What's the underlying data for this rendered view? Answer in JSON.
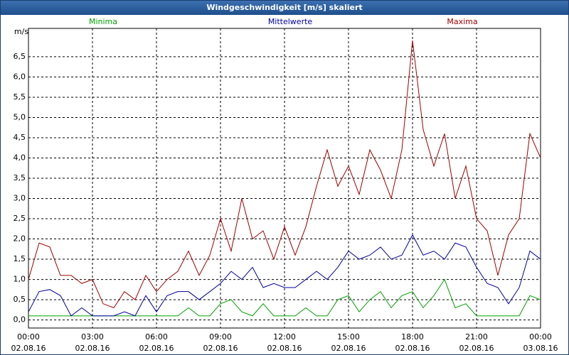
{
  "title": "Windgeschwindigkeit [m/s] skaliert",
  "chart_data": {
    "type": "line",
    "y_label": "m/s",
    "x": [
      0,
      0.5,
      1,
      1.5,
      2,
      2.5,
      3,
      3.5,
      4,
      4.5,
      5,
      5.5,
      6,
      6.5,
      7,
      7.5,
      8,
      8.5,
      9,
      9.5,
      10,
      10.5,
      11,
      11.5,
      12,
      12.5,
      13,
      13.5,
      14,
      14.5,
      15,
      15.5,
      16,
      16.5,
      17,
      17.5,
      18,
      18.5,
      19,
      19.5,
      20,
      20.5,
      21,
      21.5,
      22,
      22.5,
      23,
      23.5,
      24
    ],
    "series": [
      {
        "name": "Minima",
        "color": "#00a000",
        "values": [
          0.1,
          0.1,
          0.1,
          0.1,
          0.1,
          0.1,
          0.1,
          0.1,
          0.1,
          0.1,
          0.1,
          0.1,
          0.1,
          0.1,
          0.1,
          0.3,
          0.1,
          0.1,
          0.4,
          0.5,
          0.2,
          0.1,
          0.4,
          0.1,
          0.1,
          0.1,
          0.3,
          0.1,
          0.1,
          0.5,
          0.6,
          0.2,
          0.5,
          0.7,
          0.3,
          0.6,
          0.7,
          0.3,
          0.6,
          1.0,
          0.3,
          0.4,
          0.1,
          0.1,
          0.1,
          0.1,
          0.1,
          0.6,
          0.5
        ]
      },
      {
        "name": "Mittelwerte",
        "color": "#0000a0",
        "values": [
          0.2,
          0.7,
          0.75,
          0.6,
          0.1,
          0.3,
          0.1,
          0.1,
          0.1,
          0.2,
          0.1,
          0.6,
          0.2,
          0.6,
          0.7,
          0.7,
          0.5,
          0.7,
          0.9,
          1.2,
          1.0,
          1.3,
          0.8,
          0.9,
          0.8,
          0.8,
          1.0,
          1.2,
          1.0,
          1.3,
          1.7,
          1.5,
          1.6,
          1.8,
          1.5,
          1.6,
          2.1,
          1.6,
          1.7,
          1.5,
          1.9,
          1.8,
          1.3,
          0.9,
          0.8,
          0.4,
          0.8,
          1.7,
          1.5
        ]
      },
      {
        "name": "Maxima",
        "color": "#a00000",
        "values": [
          1.0,
          1.9,
          1.8,
          1.1,
          1.1,
          0.9,
          1.0,
          0.4,
          0.3,
          0.7,
          0.5,
          1.1,
          0.7,
          1.0,
          1.2,
          1.7,
          1.1,
          1.6,
          2.5,
          1.7,
          3.0,
          2.0,
          2.2,
          1.5,
          2.3,
          1.6,
          2.3,
          3.3,
          4.2,
          3.3,
          3.8,
          3.1,
          4.2,
          3.7,
          3.0,
          4.2,
          6.9,
          4.7,
          3.8,
          4.6,
          3.0,
          3.8,
          2.5,
          2.2,
          1.1,
          2.1,
          2.5,
          4.6,
          4.0
        ]
      }
    ],
    "xlim": [
      0,
      24
    ],
    "xticks": [
      {
        "value": 0,
        "label": "00:00"
      },
      {
        "value": 3,
        "label": "03:00"
      },
      {
        "value": 6,
        "label": "06:00"
      },
      {
        "value": 9,
        "label": "09:00"
      },
      {
        "value": 12,
        "label": "12:00"
      },
      {
        "value": 15,
        "label": "15:00"
      },
      {
        "value": 18,
        "label": "18:00"
      },
      {
        "value": 21,
        "label": "21:00"
      },
      {
        "value": 24,
        "label": "00:00"
      }
    ],
    "xtick_dates": [
      "02.08.16",
      "02.08.16",
      "02.08.16",
      "02.08.16",
      "02.08.16",
      "02.08.16",
      "02.08.16",
      "02.08.16",
      "03.08.16"
    ],
    "ylim": [
      -0.2,
      7.2
    ],
    "yticks": [
      {
        "value": 0,
        "label": "0,0"
      },
      {
        "value": 0.5,
        "label": "0,5"
      },
      {
        "value": 1,
        "label": "1,0"
      },
      {
        "value": 1.5,
        "label": "1,5"
      },
      {
        "value": 2,
        "label": "2,0"
      },
      {
        "value": 2.5,
        "label": "2,5"
      },
      {
        "value": 3,
        "label": "3,0"
      },
      {
        "value": 3.5,
        "label": "3,5"
      },
      {
        "value": 4,
        "label": "4,0"
      },
      {
        "value": 4.5,
        "label": "4,5"
      },
      {
        "value": 5,
        "label": "5,0"
      },
      {
        "value": 5.5,
        "label": "5,5"
      },
      {
        "value": 6,
        "label": "6,0"
      },
      {
        "value": 6.5,
        "label": "6,5"
      }
    ],
    "grid": true
  }
}
